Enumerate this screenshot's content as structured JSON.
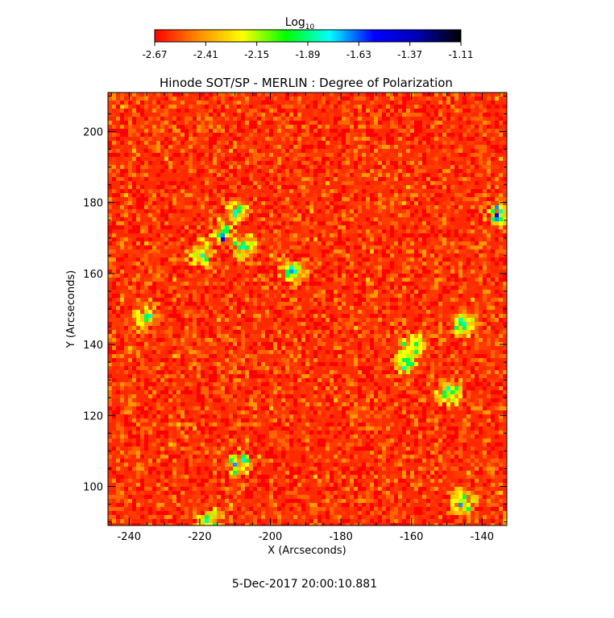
{
  "chart_data": {
    "type": "heatmap",
    "title": "Hinode SOT/SP - MERLIN : Degree of Polarization",
    "xlabel": "X (Arcseconds)",
    "ylabel": "Y (Arcseconds)",
    "xlim": [
      -246,
      -133
    ],
    "ylim": [
      89,
      211
    ],
    "xticks": [
      -240,
      -220,
      -200,
      -180,
      -160,
      -140
    ],
    "yticks": [
      100,
      120,
      140,
      160,
      180,
      200
    ],
    "colorbar": {
      "label_base": "Log",
      "label_sub": "10",
      "range": [
        -2.67,
        -1.11
      ],
      "ticks": [
        "-2.67",
        "-2.41",
        "-2.15",
        "-1.89",
        "-1.63",
        "-1.37",
        "-1.11"
      ],
      "colormap": [
        "#ff0000",
        "#ff8c00",
        "#ffff00",
        "#00ff00",
        "#00ffff",
        "#0000ff",
        "#0000b4",
        "#000000"
      ]
    },
    "high_polarization_regions": [
      {
        "x": -210,
        "y": 178
      },
      {
        "x": -208,
        "y": 168
      },
      {
        "x": -214,
        "y": 172
      },
      {
        "x": -220,
        "y": 166
      },
      {
        "x": -194,
        "y": 161
      },
      {
        "x": -162,
        "y": 136
      },
      {
        "x": -160,
        "y": 140
      },
      {
        "x": -150,
        "y": 127
      },
      {
        "x": -146,
        "y": 146
      },
      {
        "x": -136,
        "y": 177
      },
      {
        "x": -209,
        "y": 107
      },
      {
        "x": -218,
        "y": 91
      },
      {
        "x": -146,
        "y": 96
      },
      {
        "x": -236,
        "y": 148
      }
    ],
    "grid": false
  },
  "timestamp": "5-Dec-2017 20:00:10.881"
}
